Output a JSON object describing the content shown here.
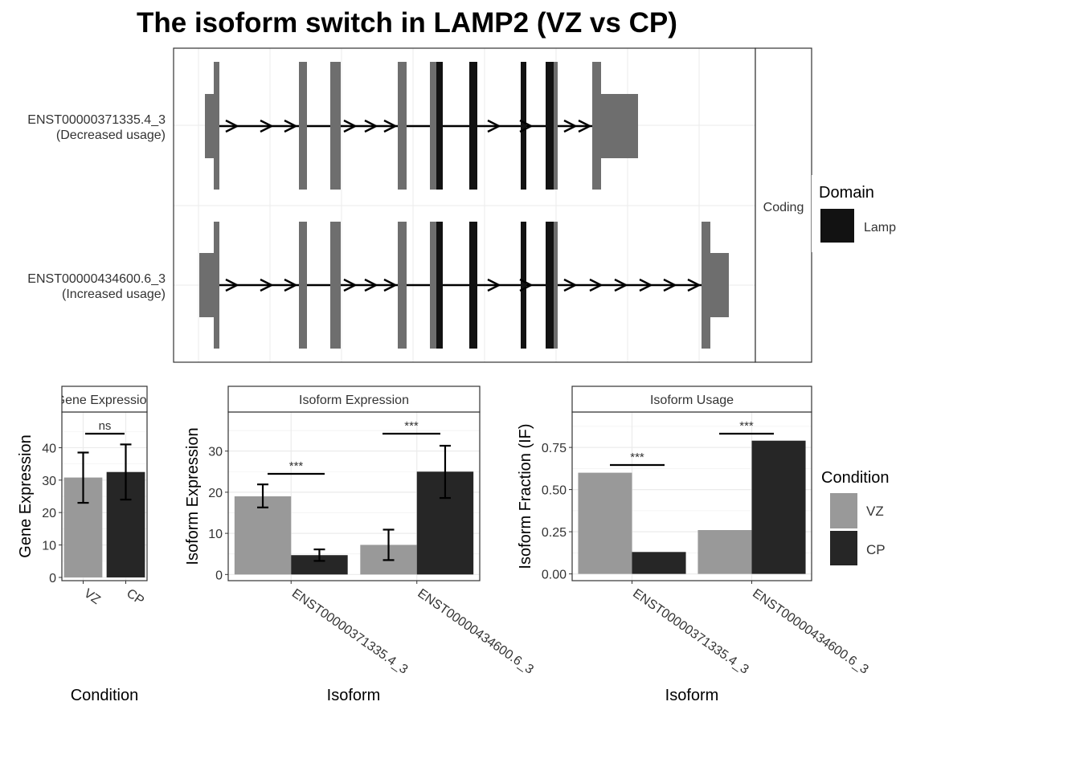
{
  "title": "The isoform switch in LAMP2 (VZ vs CP)",
  "colors": {
    "utr": "#6e6e6e",
    "domain": "#121212",
    "vz": "#999999",
    "cp": "#262626",
    "grid": "#ebebeb",
    "frame": "#333333"
  },
  "transcript_panel": {
    "isoforms": [
      {
        "id": "ENST00000371335.4_3",
        "note": "(Decreased usage)"
      },
      {
        "id": "ENST00000434600.6_3",
        "note": "(Increased usage)"
      }
    ],
    "strip": "Coding",
    "legend": {
      "title": "Domain",
      "items": [
        "Lamp"
      ]
    }
  },
  "legend_condition": {
    "title": "Condition",
    "items": [
      "VZ",
      "CP"
    ]
  },
  "chart_data": [
    {
      "type": "bar",
      "title": "Gene Expression",
      "xlabel": "Condition",
      "ylabel": "Gene Expression",
      "categories": [
        "VZ",
        "CP"
      ],
      "values": [
        30.8,
        32.5
      ],
      "error_low": [
        23.0,
        24.0
      ],
      "error_high": [
        38.5,
        41.0
      ],
      "ylim": [
        -1,
        51
      ],
      "yticks": [
        0,
        10,
        20,
        30,
        40
      ],
      "significance": [
        {
          "label": "ns"
        }
      ]
    },
    {
      "type": "bar",
      "title": "Isoform Expression",
      "xlabel": "Isoform",
      "ylabel": "Isoform Expression",
      "categories": [
        "ENST00000371335.4_3",
        "ENST00000434600.6_3"
      ],
      "series": [
        {
          "name": "VZ",
          "values": [
            19.0,
            7.2
          ],
          "error_low": [
            16.3,
            3.5
          ],
          "error_high": [
            21.9,
            10.9
          ]
        },
        {
          "name": "CP",
          "values": [
            4.7,
            25.0
          ],
          "error_low": [
            3.3,
            18.6
          ],
          "error_high": [
            6.1,
            31.3
          ]
        }
      ],
      "ylim": [
        -1.5,
        39.5
      ],
      "yticks": [
        0,
        10,
        20,
        30
      ],
      "significance": [
        {
          "label": "***"
        },
        {
          "label": "***"
        }
      ]
    },
    {
      "type": "bar",
      "title": "Isoform Usage",
      "xlabel": "Isoform",
      "ylabel": "Isoform Fraction (IF)",
      "categories": [
        "ENST00000371335.4_3",
        "ENST00000434600.6_3"
      ],
      "series": [
        {
          "name": "VZ",
          "values": [
            0.6,
            0.26
          ]
        },
        {
          "name": "CP",
          "values": [
            0.13,
            0.79
          ]
        }
      ],
      "ylim": [
        -0.04,
        0.96
      ],
      "yticks": [
        "0.00",
        "0.25",
        "0.50",
        "0.75"
      ],
      "significance": [
        {
          "label": "***"
        },
        {
          "label": "***"
        }
      ]
    }
  ]
}
